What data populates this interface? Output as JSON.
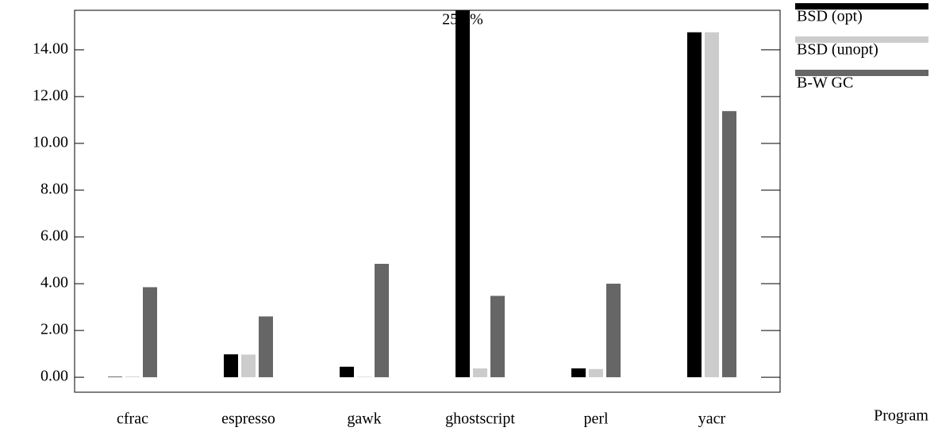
{
  "chart_data": {
    "type": "bar",
    "x_label": "Program",
    "categories": [
      "cfrac",
      "espresso",
      "gawk",
      "ghostscript",
      "perl",
      "yacr"
    ],
    "series": [
      {
        "name": "BSD (opt)",
        "color": "#000000",
        "values": [
          0.02,
          0.98,
          0.45,
          25.9,
          0.38,
          14.75
        ],
        "value_labels": [
          null,
          null,
          null,
          "25.9%",
          null,
          null
        ]
      },
      {
        "name": "BSD (unopt)",
        "color": "#cccccc",
        "values": [
          0.03,
          0.97,
          0.02,
          0.38,
          0.35,
          14.75
        ]
      },
      {
        "name": "B-W GC",
        "color": "#666666",
        "values": [
          3.85,
          2.6,
          4.85,
          3.48,
          4.0,
          11.38
        ]
      }
    ],
    "ylim": [
      -0.64,
      15.69
    ],
    "yticks": [
      {
        "value": 0,
        "label": "0.00"
      },
      {
        "value": 2,
        "label": "2.00"
      },
      {
        "value": 4,
        "label": "4.00"
      },
      {
        "value": 6,
        "label": "6.00"
      },
      {
        "value": 8,
        "label": "8.00"
      },
      {
        "value": 10,
        "label": "10.00"
      },
      {
        "value": 12,
        "label": "12.00"
      },
      {
        "value": 14,
        "label": "14.00"
      }
    ],
    "grid": false
  }
}
